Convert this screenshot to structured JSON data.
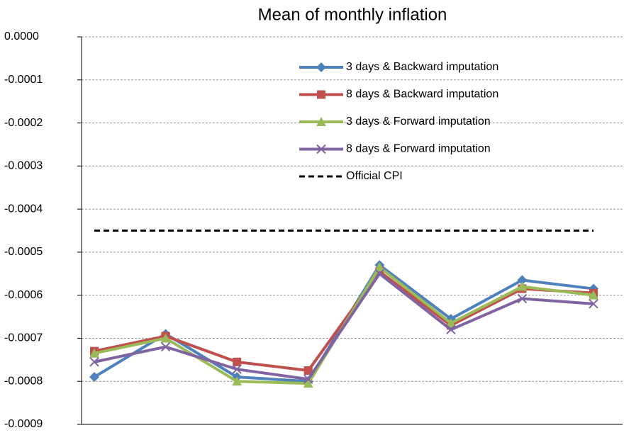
{
  "chart_data": {
    "type": "line",
    "title": "Mean of monthly inflation",
    "categories": [
      null,
      null,
      null,
      null,
      null,
      null,
      null,
      null
    ],
    "series": [
      {
        "name": "3 days & Backward imputation",
        "color": "#4f81bd",
        "marker": "diamond",
        "dash": "solid",
        "values": [
          -0.00079,
          -0.00069,
          -0.00079,
          -0.0008,
          -0.00053,
          -0.000655,
          -0.000565,
          -0.000585
        ]
      },
      {
        "name": "8 days & Backward imputation",
        "color": "#c0504d",
        "marker": "square",
        "dash": "solid",
        "values": [
          -0.00073,
          -0.000695,
          -0.000755,
          -0.000775,
          -0.000545,
          -0.00067,
          -0.000585,
          -0.000595
        ]
      },
      {
        "name": "3 days & Forward imputation",
        "color": "#9bbb59",
        "marker": "triangle",
        "dash": "solid",
        "values": [
          -0.000735,
          -0.0007,
          -0.0008,
          -0.000805,
          -0.000535,
          -0.000665,
          -0.00058,
          -0.0006
        ]
      },
      {
        "name": "8 days & Forward imputation",
        "color": "#8064a2",
        "marker": "x",
        "dash": "solid",
        "values": [
          -0.000755,
          -0.00072,
          -0.000772,
          -0.000795,
          -0.00055,
          -0.00068,
          -0.000608,
          -0.00062
        ]
      },
      {
        "name": "Official CPI",
        "color": "#000000",
        "marker": "none",
        "dash": "dashed",
        "values": [
          -0.00045,
          -0.00045,
          -0.00045,
          -0.00045,
          -0.00045,
          -0.00045,
          -0.00045,
          -0.00045
        ]
      }
    ],
    "ylim": [
      -0.0009,
      0
    ],
    "yticks": [
      -0.0009,
      -0.0008,
      -0.0007,
      -0.0006,
      -0.0005,
      -0.0004,
      -0.0003,
      -0.0002,
      -0.0001,
      {
        "value": 0,
        "label": "0.0000"
      }
    ],
    "grid": true,
    "legend": "top-right"
  }
}
